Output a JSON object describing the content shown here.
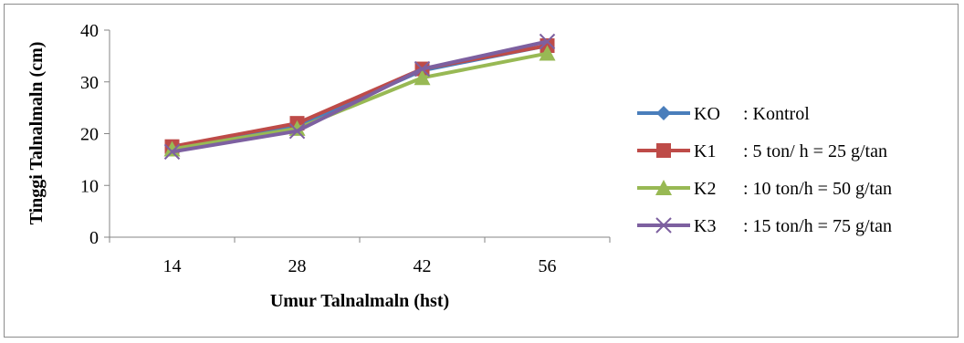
{
  "chart_data": {
    "type": "line",
    "title": "",
    "xlabel": "Umur Talnalmaln (hst)",
    "ylabel": "Tinggi Talnalmaln (cm)",
    "categories": [
      "14",
      "28",
      "42",
      "56"
    ],
    "ylim": [
      0,
      40
    ],
    "yticks": [
      "0",
      "10",
      "20",
      "30",
      "40"
    ],
    "grid": false,
    "legend_position": "right",
    "series": [
      {
        "name": "KO",
        "desc": ": Kontrol",
        "color": "#4a7ebb",
        "marker": "diamond",
        "values": [
          17.2,
          21.5,
          32.2,
          37.0
        ]
      },
      {
        "name": "K1",
        "desc": ": 5 ton/ h = 25 g/tan",
        "color": "#be4b48",
        "marker": "square",
        "values": [
          17.5,
          22.0,
          32.5,
          37.0
        ]
      },
      {
        "name": "K2",
        "desc": ": 10 ton/h  = 50 g/tan",
        "color": "#98b954",
        "marker": "triangle",
        "values": [
          17.0,
          21.0,
          30.8,
          35.5
        ]
      },
      {
        "name": "K3",
        "desc": ": 15 ton/h  = 75 g/tan",
        "color": "#7d60a0",
        "marker": "x",
        "values": [
          16.5,
          20.5,
          32.5,
          37.8
        ]
      }
    ]
  }
}
